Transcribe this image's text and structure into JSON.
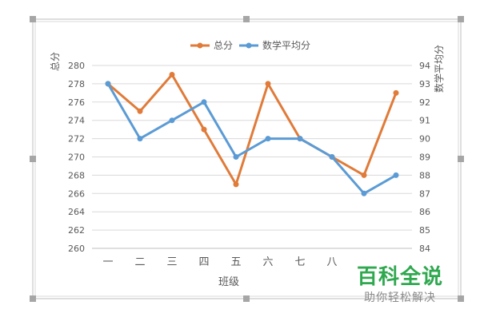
{
  "chart_data": {
    "type": "line",
    "title": "",
    "xlabel": "班级",
    "ylabel": "总分",
    "y2label": "数学平均分",
    "categories": [
      "一",
      "二",
      "三",
      "四",
      "五",
      "六",
      "七",
      "八",
      "",
      ""
    ],
    "ylim": [
      260,
      280
    ],
    "yticks": [
      260,
      262,
      264,
      266,
      268,
      270,
      272,
      274,
      276,
      278,
      280
    ],
    "y2lim": [
      84,
      94
    ],
    "y2ticks": [
      84,
      85,
      86,
      87,
      88,
      89,
      90,
      91,
      92,
      93,
      94
    ],
    "grid": true,
    "legend_position": "top",
    "series": [
      {
        "name": "总分",
        "axis": "left",
        "color": "#E07B39",
        "values": [
          278,
          275,
          279,
          273,
          267,
          278,
          272,
          270,
          268,
          277
        ]
      },
      {
        "name": "数学平均分",
        "axis": "right",
        "color": "#5B9BD5",
        "values": [
          93,
          90,
          91,
          92,
          89,
          90,
          90,
          89,
          87,
          88
        ]
      }
    ]
  },
  "watermark": {
    "title": "百科全说",
    "subtitle": "助你轻松解决"
  }
}
